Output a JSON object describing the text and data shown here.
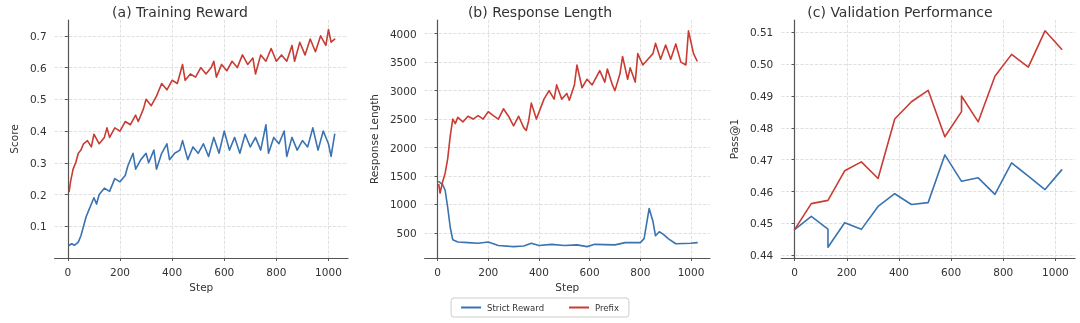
{
  "chart_data": [
    {
      "type": "line",
      "title": "(a) Training Reward",
      "xlabel": "Step",
      "ylabel": "Score",
      "xlim": [
        -51,
        1075
      ],
      "xticks": [
        0,
        200,
        400,
        600,
        800,
        1000
      ],
      "ylim": [
        0,
        0.75
      ],
      "yticks": [
        0.1,
        0.2,
        0.3,
        0.4,
        0.5,
        0.6,
        0.7
      ],
      "grid": true,
      "legend": false,
      "series": [
        {
          "color": "#3a73b0",
          "x": [
            5,
            15,
            25,
            40,
            50,
            60,
            70,
            80,
            90,
            100,
            110,
            120,
            140,
            160,
            180,
            200,
            220,
            230,
            250,
            260,
            280,
            300,
            310,
            330,
            340,
            360,
            380,
            390,
            410,
            430,
            440,
            460,
            480,
            500,
            520,
            540,
            560,
            580,
            600,
            620,
            640,
            660,
            680,
            700,
            720,
            740,
            760,
            770,
            790,
            810,
            830,
            840,
            860,
            880,
            900,
            920,
            940,
            960,
            980,
            1000,
            1010,
            1024
          ],
          "values": [
            0.04,
            0.045,
            0.04,
            0.05,
            0.07,
            0.1,
            0.13,
            0.15,
            0.17,
            0.19,
            0.17,
            0.2,
            0.22,
            0.21,
            0.25,
            0.24,
            0.26,
            0.29,
            0.33,
            0.28,
            0.31,
            0.33,
            0.3,
            0.34,
            0.28,
            0.33,
            0.36,
            0.31,
            0.33,
            0.34,
            0.37,
            0.31,
            0.35,
            0.33,
            0.36,
            0.32,
            0.38,
            0.33,
            0.4,
            0.34,
            0.38,
            0.33,
            0.39,
            0.35,
            0.38,
            0.34,
            0.42,
            0.33,
            0.38,
            0.36,
            0.4,
            0.32,
            0.38,
            0.34,
            0.37,
            0.35,
            0.41,
            0.34,
            0.4,
            0.36,
            0.32,
            0.39
          ]
        },
        {
          "color": "#c83c33",
          "x": [
            5,
            10,
            20,
            30,
            40,
            50,
            60,
            75,
            90,
            100,
            120,
            140,
            150,
            160,
            180,
            200,
            220,
            240,
            260,
            270,
            290,
            300,
            320,
            340,
            360,
            380,
            400,
            420,
            440,
            450,
            470,
            490,
            510,
            530,
            550,
            560,
            570,
            590,
            610,
            630,
            650,
            670,
            690,
            710,
            720,
            740,
            760,
            780,
            800,
            820,
            840,
            860,
            870,
            890,
            910,
            930,
            950,
            970,
            990,
            1000,
            1010,
            1024
          ],
          "values": [
            0.21,
            0.24,
            0.28,
            0.3,
            0.33,
            0.34,
            0.36,
            0.37,
            0.35,
            0.39,
            0.36,
            0.38,
            0.41,
            0.38,
            0.41,
            0.4,
            0.43,
            0.42,
            0.45,
            0.43,
            0.47,
            0.5,
            0.48,
            0.51,
            0.55,
            0.53,
            0.56,
            0.55,
            0.61,
            0.56,
            0.58,
            0.57,
            0.6,
            0.58,
            0.6,
            0.62,
            0.57,
            0.61,
            0.59,
            0.62,
            0.6,
            0.64,
            0.61,
            0.63,
            0.58,
            0.64,
            0.62,
            0.66,
            0.62,
            0.64,
            0.62,
            0.67,
            0.62,
            0.68,
            0.64,
            0.69,
            0.65,
            0.7,
            0.67,
            0.72,
            0.68,
            0.69
          ]
        }
      ]
    },
    {
      "type": "line",
      "title": "(b) Response Length",
      "xlabel": "Step",
      "ylabel": "Response Length",
      "xlim": [
        -51,
        1075
      ],
      "xticks": [
        0,
        200,
        400,
        600,
        800,
        1000
      ],
      "ylim": [
        60,
        4240
      ],
      "yticks": [
        500,
        1000,
        1500,
        2000,
        2500,
        3000,
        3500,
        4000
      ],
      "grid": true,
      "legend": "bottom",
      "series": [
        {
          "name": "Strict Reward",
          "color": "#3a73b0",
          "x": [
            5,
            20,
            30,
            40,
            50,
            60,
            80,
            120,
            160,
            200,
            240,
            300,
            340,
            370,
            400,
            450,
            500,
            550,
            590,
            620,
            700,
            740,
            800,
            815,
            835,
            850,
            860,
            875,
            890,
            910,
            940,
            1000,
            1024
          ],
          "values": [
            1400,
            1350,
            1250,
            950,
            600,
            380,
            340,
            330,
            320,
            340,
            280,
            260,
            270,
            320,
            280,
            300,
            280,
            290,
            260,
            300,
            290,
            330,
            330,
            400,
            930,
            700,
            450,
            520,
            480,
            400,
            310,
            320,
            330
          ]
        },
        {
          "name": "Prefix",
          "color": "#c83c33",
          "x": [
            5,
            10,
            20,
            30,
            40,
            50,
            60,
            70,
            80,
            100,
            120,
            140,
            160,
            180,
            200,
            220,
            240,
            260,
            280,
            300,
            320,
            340,
            350,
            360,
            370,
            390,
            420,
            440,
            460,
            470,
            490,
            510,
            520,
            540,
            550,
            570,
            590,
            610,
            640,
            660,
            670,
            690,
            700,
            720,
            730,
            750,
            760,
            780,
            790,
            810,
            830,
            850,
            860,
            880,
            900,
            920,
            940,
            960,
            980,
            990,
            1000,
            1010,
            1024
          ],
          "values": [
            1350,
            1200,
            1400,
            1550,
            1800,
            2200,
            2500,
            2420,
            2530,
            2450,
            2550,
            2500,
            2560,
            2500,
            2630,
            2560,
            2500,
            2680,
            2550,
            2380,
            2550,
            2350,
            2300,
            2480,
            2780,
            2500,
            2850,
            3000,
            2850,
            3100,
            2850,
            2950,
            2830,
            3100,
            3450,
            3050,
            3200,
            3100,
            3350,
            3150,
            3380,
            3100,
            3000,
            3300,
            3600,
            3200,
            3400,
            3150,
            3650,
            3450,
            3550,
            3650,
            3830,
            3550,
            3800,
            3550,
            3820,
            3500,
            3450,
            4050,
            3850,
            3650,
            3520
          ]
        }
      ]
    },
    {
      "type": "line",
      "title": "(c) Validation Performance",
      "ylabel": "Pass@1",
      "xlim": [
        -51,
        1075
      ],
      "xticks": [
        0,
        200,
        400,
        600,
        800,
        1000
      ],
      "ylim": [
        0.4391,
        0.5139
      ],
      "yticks": [
        0.44,
        0.45,
        0.46,
        0.47,
        0.48,
        0.49,
        {
          "value": 0.5,
          "label": "0.50"
        },
        0.51
      ],
      "grid": true,
      "legend": false,
      "series": [
        {
          "color": "#3a73b0",
          "x": [
            0,
            64,
            128,
            128,
            192,
            256,
            320,
            384,
            448,
            512,
            576,
            640,
            704,
            768,
            832,
            896,
            960,
            1024
          ],
          "values": [
            0.448,
            0.4522,
            0.4482,
            0.4425,
            0.4502,
            0.4481,
            0.4553,
            0.4593,
            0.4559,
            0.4565,
            0.4715,
            0.4632,
            0.4643,
            0.4591,
            0.469,
            0.4648,
            0.4606,
            0.4668
          ]
        },
        {
          "color": "#c83c33",
          "x": [
            0,
            64,
            128,
            192,
            256,
            320,
            384,
            448,
            512,
            576,
            640,
            640,
            704,
            768,
            832,
            896,
            960,
            1024
          ],
          "values": [
            0.448,
            0.4562,
            0.4572,
            0.4665,
            0.4693,
            0.4641,
            0.4828,
            0.4882,
            0.4918,
            0.4772,
            0.4851,
            0.49,
            0.4819,
            0.4962,
            0.5031,
            0.4991,
            0.5105,
            0.5047
          ]
        }
      ]
    }
  ]
}
